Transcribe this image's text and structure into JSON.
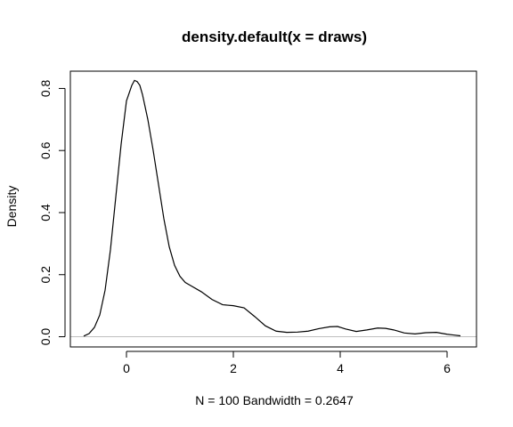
{
  "chart_data": {
    "type": "line",
    "title": "density.default(x = draws)",
    "xlabel": "N = 100   Bandwidth = 0.2647",
    "ylabel": "Density",
    "xlim": [
      -1.05,
      6.55
    ],
    "ylim": [
      -0.0329,
      0.8557
    ],
    "x_ticks": [
      0,
      2,
      4,
      6
    ],
    "y_ticks": [
      0.0,
      0.2,
      0.4,
      0.6,
      0.8
    ],
    "x_tick_labels": [
      "0",
      "2",
      "4",
      "6"
    ],
    "y_tick_labels": [
      "0.0",
      "0.2",
      "0.4",
      "0.6",
      "0.8"
    ],
    "grid": false,
    "reference_line": {
      "y": 0,
      "color": "#bebebe"
    },
    "line_color": "#000000",
    "series": [
      {
        "x": [
          -0.8,
          -0.7,
          -0.6,
          -0.5,
          -0.4,
          -0.3,
          -0.2,
          -0.1,
          0.0,
          0.1,
          0.15,
          0.2,
          0.25,
          0.3,
          0.4,
          0.5,
          0.6,
          0.7,
          0.8,
          0.9,
          1.0,
          1.1,
          1.2,
          1.4,
          1.6,
          1.8,
          2.0,
          2.2,
          2.4,
          2.6,
          2.8,
          3.0,
          3.2,
          3.4,
          3.6,
          3.8,
          3.95,
          4.1,
          4.3,
          4.5,
          4.7,
          4.85,
          5.0,
          5.2,
          5.4,
          5.6,
          5.8,
          6.0,
          6.25
        ],
        "y": [
          0.002,
          0.01,
          0.03,
          0.07,
          0.15,
          0.28,
          0.45,
          0.62,
          0.76,
          0.81,
          0.826,
          0.822,
          0.81,
          0.78,
          0.7,
          0.6,
          0.49,
          0.38,
          0.29,
          0.23,
          0.195,
          0.175,
          0.165,
          0.145,
          0.12,
          0.103,
          0.1,
          0.093,
          0.065,
          0.035,
          0.018,
          0.014,
          0.015,
          0.018,
          0.026,
          0.032,
          0.033,
          0.025,
          0.017,
          0.022,
          0.028,
          0.027,
          0.022,
          0.012,
          0.009,
          0.013,
          0.014,
          0.008,
          0.003
        ]
      }
    ]
  }
}
